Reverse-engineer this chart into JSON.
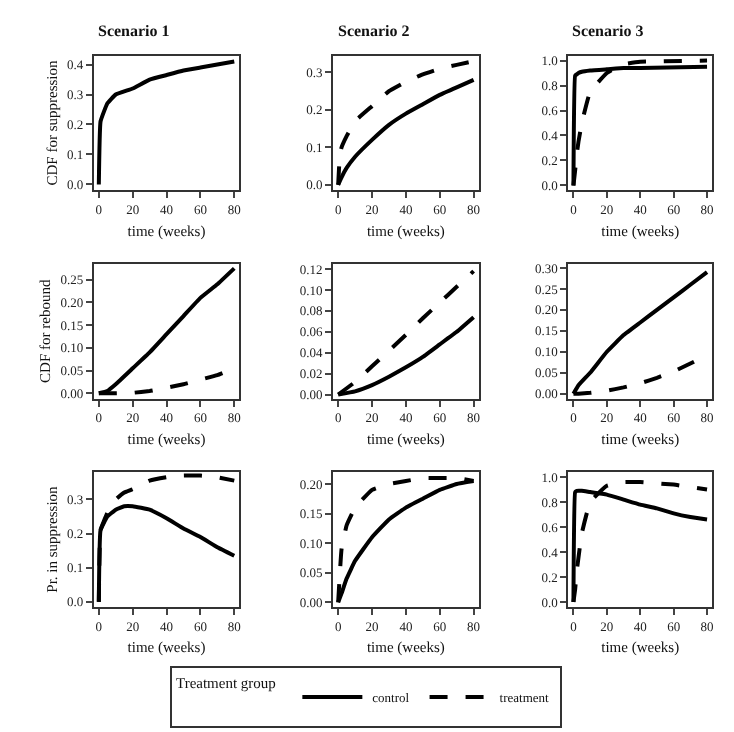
{
  "chart_data": [
    {
      "type": "line",
      "title": "Scenario 1",
      "ylabel": "CDF for suppression",
      "xlabel": "time (weeks)",
      "xlim": [
        -3,
        83
      ],
      "xticks": [
        0,
        20,
        40,
        60,
        80
      ],
      "ylim": [
        -0.02,
        0.43
      ],
      "yticks": [
        {
          "value": 0,
          "label": "0.0"
        },
        0.1,
        0.2,
        0.3,
        0.4
      ],
      "x": [
        0,
        1,
        5,
        10,
        20,
        30,
        40,
        50,
        60,
        70,
        80
      ],
      "series": [
        {
          "color": "#000000",
          "line_style": "solid",
          "values": [
            0,
            0.21,
            0.27,
            0.3,
            0.32,
            0.35,
            0.365,
            0.38,
            0.39,
            0.4,
            0.41
          ]
        }
      ]
    },
    {
      "type": "line",
      "title": "Scenario 2",
      "xlabel": "time (weeks)",
      "xlim": [
        -3,
        83
      ],
      "xticks": [
        0,
        20,
        40,
        60,
        80
      ],
      "ylim": [
        -0.015,
        0.345
      ],
      "yticks": [
        {
          "value": 0,
          "label": "0.0"
        },
        0.1,
        0.2,
        0.3
      ],
      "x": [
        0,
        1,
        2,
        5,
        10,
        20,
        30,
        40,
        50,
        60,
        70,
        80
      ],
      "series": [
        {
          "color": "#000000",
          "line_style": "solid",
          "values": [
            0,
            0.01,
            0.02,
            0.045,
            0.075,
            0.12,
            0.16,
            0.19,
            0.215,
            0.24,
            0.26,
            0.28
          ]
        },
        {
          "color": "#000000",
          "line_style": "dashed",
          "values": [
            0,
            0.08,
            0.1,
            0.13,
            0.17,
            0.21,
            0.25,
            0.275,
            0.295,
            0.31,
            0.32,
            0.33
          ]
        }
      ]
    },
    {
      "type": "line",
      "title": "Scenario 3",
      "xlabel": "time (weeks)",
      "xlim": [
        -3,
        83
      ],
      "xticks": [
        0,
        20,
        40,
        60,
        80
      ],
      "ylim": [
        -0.04,
        1.04
      ],
      "yticks": [
        {
          "value": 0,
          "label": "0.0"
        },
        0.2,
        0.4,
        0.6,
        0.8,
        {
          "value": 1,
          "label": "1.0"
        }
      ],
      "x": [
        0,
        1,
        2,
        3,
        5,
        10,
        20,
        30,
        40,
        80
      ],
      "series": [
        {
          "color": "#000000",
          "line_style": "solid",
          "values": [
            0,
            0.88,
            0.89,
            0.9,
            0.91,
            0.92,
            0.93,
            0.94,
            0.94,
            0.95
          ]
        },
        {
          "color": "#000000",
          "line_style": "dashed",
          "values": [
            0,
            0.12,
            0.25,
            0.35,
            0.5,
            0.75,
            0.9,
            0.97,
            0.99,
            1.0
          ]
        }
      ]
    },
    {
      "type": "line",
      "ylabel": "CDF for rebound",
      "xlabel": "time (weeks)",
      "xlim": [
        -3,
        83
      ],
      "xticks": [
        0,
        20,
        40,
        60,
        80
      ],
      "ylim": [
        -0.012,
        0.285
      ],
      "yticks": [
        {
          "value": 0,
          "label": "0.00"
        },
        0.05,
        {
          "value": 0.1,
          "label": "0.10"
        },
        0.15,
        {
          "value": 0.2,
          "label": "0.20"
        },
        0.25
      ],
      "x": [
        0,
        5,
        10,
        20,
        30,
        40,
        50,
        60,
        70,
        80
      ],
      "series": [
        {
          "color": "#000000",
          "line_style": "solid",
          "values": [
            0,
            0.005,
            0.02,
            0.055,
            0.09,
            0.13,
            0.17,
            0.21,
            0.24,
            0.275
          ]
        },
        {
          "color": "#000000",
          "line_style": "dashed",
          "values": [
            0,
            0,
            0,
            0.001,
            0.005,
            0.012,
            0.02,
            0.03,
            0.04,
            0.055
          ]
        }
      ]
    },
    {
      "type": "line",
      "xlabel": "time (weeks)",
      "xlim": [
        -3,
        83
      ],
      "xticks": [
        0,
        20,
        40,
        60,
        80
      ],
      "ylim": [
        -0.004,
        0.125
      ],
      "yticks": [
        {
          "value": 0,
          "label": "0.00"
        },
        0.02,
        0.04,
        0.06,
        0.08,
        {
          "value": 0.1,
          "label": "0.10"
        },
        0.12
      ],
      "x": [
        0,
        10,
        20,
        30,
        40,
        50,
        60,
        70,
        80
      ],
      "series": [
        {
          "color": "#000000",
          "line_style": "solid",
          "values": [
            0,
            0.003,
            0.009,
            0.017,
            0.026,
            0.036,
            0.048,
            0.06,
            0.074
          ]
        },
        {
          "color": "#000000",
          "line_style": "dashed",
          "values": [
            0,
            0.012,
            0.027,
            0.042,
            0.057,
            0.073,
            0.088,
            0.103,
            0.118
          ]
        }
      ]
    },
    {
      "type": "line",
      "xlabel": "time (weeks)",
      "xlim": [
        -3,
        83
      ],
      "xticks": [
        0,
        20,
        40,
        60,
        80
      ],
      "ylim": [
        -0.012,
        0.31
      ],
      "yticks": [
        {
          "value": 0,
          "label": "0.00"
        },
        0.05,
        {
          "value": 0.1,
          "label": "0.10"
        },
        0.15,
        {
          "value": 0.2,
          "label": "0.20"
        },
        0.25,
        {
          "value": 0.3,
          "label": "0.30"
        }
      ],
      "x": [
        0,
        3,
        10,
        20,
        30,
        40,
        50,
        60,
        70,
        80
      ],
      "series": [
        {
          "color": "#000000",
          "line_style": "solid",
          "values": [
            0,
            0.02,
            0.05,
            0.1,
            0.14,
            0.17,
            0.2,
            0.23,
            0.26,
            0.29
          ]
        },
        {
          "color": "#000000",
          "line_style": "dashed",
          "values": [
            0,
            0,
            0.002,
            0.007,
            0.015,
            0.025,
            0.038,
            0.053,
            0.072,
            0.092
          ]
        }
      ]
    },
    {
      "type": "line",
      "ylabel": "Pr. in suppression",
      "xlabel": "time (weeks)",
      "xlim": [
        -3,
        83
      ],
      "xticks": [
        0,
        20,
        40,
        60,
        80
      ],
      "ylim": [
        -0.015,
        0.38
      ],
      "yticks": [
        {
          "value": 0,
          "label": "0.0"
        },
        0.1,
        0.2,
        0.3
      ],
      "x": [
        0,
        1,
        5,
        10,
        15,
        20,
        30,
        40,
        50,
        60,
        70,
        80
      ],
      "series": [
        {
          "color": "#000000",
          "line_style": "solid",
          "values": [
            0,
            0.21,
            0.25,
            0.27,
            0.28,
            0.28,
            0.27,
            0.245,
            0.215,
            0.19,
            0.16,
            0.135
          ]
        },
        {
          "color": "#000000",
          "line_style": "dashed",
          "values": [
            0,
            0.21,
            0.26,
            0.3,
            0.32,
            0.33,
            0.355,
            0.365,
            0.37,
            0.37,
            0.365,
            0.355
          ]
        }
      ]
    },
    {
      "type": "line",
      "xlabel": "time (weeks)",
      "xlim": [
        -3,
        83
      ],
      "xticks": [
        0,
        20,
        40,
        60,
        80
      ],
      "ylim": [
        -0.008,
        0.22
      ],
      "yticks": [
        {
          "value": 0,
          "label": "0.00"
        },
        0.05,
        {
          "value": 0.1,
          "label": "0.10"
        },
        0.15,
        {
          "value": 0.2,
          "label": "0.20"
        }
      ],
      "legend": "bottom",
      "legend_title": "Treatment group",
      "x": [
        0,
        2,
        5,
        10,
        20,
        30,
        40,
        50,
        60,
        70,
        80
      ],
      "series": [
        {
          "name": "control",
          "color": "#000000",
          "line_style": "solid",
          "values": [
            0,
            0.015,
            0.04,
            0.07,
            0.11,
            0.14,
            0.16,
            0.175,
            0.19,
            0.2,
            0.205
          ]
        },
        {
          "name": "treatment",
          "color": "#000000",
          "line_style": "dashed",
          "values": [
            0,
            0.09,
            0.13,
            0.16,
            0.19,
            0.2,
            0.205,
            0.21,
            0.21,
            0.21,
            0.205
          ]
        }
      ]
    },
    {
      "type": "line",
      "xlabel": "time (weeks)",
      "xlim": [
        -3,
        83
      ],
      "xticks": [
        0,
        20,
        40,
        60,
        80
      ],
      "ylim": [
        -0.04,
        1.04
      ],
      "yticks": [
        {
          "value": 0,
          "label": "0.0"
        },
        0.2,
        0.4,
        0.6,
        0.8,
        {
          "value": 1,
          "label": "1.0"
        }
      ],
      "x": [
        0,
        1,
        2,
        5,
        10,
        20,
        30,
        40,
        50,
        60,
        70,
        80
      ],
      "series": [
        {
          "color": "#000000",
          "line_style": "solid",
          "values": [
            0,
            0.88,
            0.89,
            0.89,
            0.88,
            0.86,
            0.82,
            0.78,
            0.75,
            0.71,
            0.68,
            0.66
          ]
        },
        {
          "color": "#000000",
          "line_style": "dashed",
          "values": [
            0,
            0.1,
            0.25,
            0.55,
            0.8,
            0.93,
            0.96,
            0.96,
            0.95,
            0.94,
            0.92,
            0.9
          ]
        }
      ]
    }
  ]
}
